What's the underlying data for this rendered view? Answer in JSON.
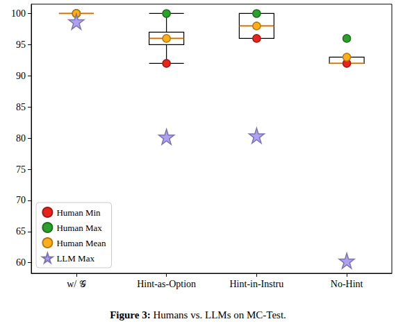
{
  "chart_data": {
    "type": "boxplot",
    "title": "Figure 3: Humans vs. LLMs on MC-Test.",
    "categories": [
      "w/ 𝒢",
      "Hint-as-Option",
      "Hint-in-Instru",
      "No-Hint"
    ],
    "boxes": {
      "color": "#000000",
      "values": [
        [
          100,
          100,
          100,
          100,
          100
        ],
        [
          92,
          95,
          96,
          97,
          100
        ],
        [
          96,
          96,
          98,
          100,
          100
        ],
        [
          92,
          92,
          92,
          93,
          93
        ]
      ]
    },
    "series": [
      {
        "name": "Human Min",
        "type": "scatter",
        "marker": "circle",
        "color": "#e8241c",
        "values": [
          100,
          92,
          96,
          92
        ]
      },
      {
        "name": "Human Max",
        "type": "scatter",
        "marker": "circle",
        "color": "#2ca02c",
        "values": [
          100,
          100,
          100,
          96
        ]
      },
      {
        "name": "Human Mean",
        "type": "scatter",
        "marker": "circle",
        "color": "#ffae1a",
        "values": [
          100,
          96,
          98,
          93
        ]
      },
      {
        "name": "LLM Max",
        "type": "scatter",
        "marker": "star",
        "color": "#a598ee",
        "values": [
          98.7,
          80.2,
          80.4,
          60.3
        ]
      }
    ],
    "ylim": [
      58.3,
      101.5
    ],
    "yticks": [
      60,
      65,
      70,
      75,
      80,
      85,
      90,
      95,
      100
    ],
    "grid": false,
    "legend": "lower left"
  }
}
